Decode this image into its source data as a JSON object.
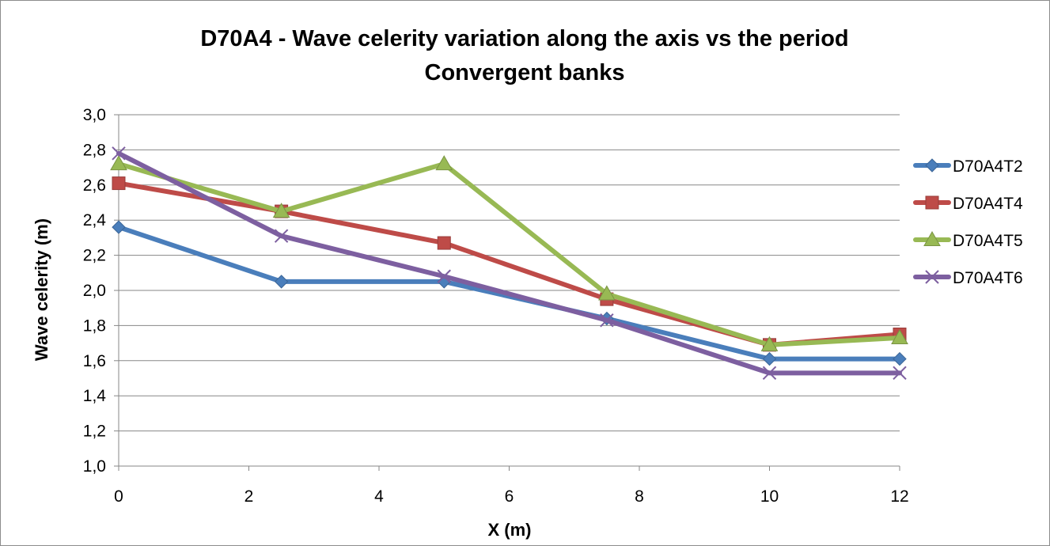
{
  "chart_data": {
    "type": "line",
    "title": "D70A4 - Wave celerity variation along the axis vs the period",
    "subtitle": "Convergent banks",
    "xlabel": "X (m)",
    "ylabel": "Wave celerity (m)",
    "xlim": [
      0,
      12
    ],
    "ylim": [
      1.0,
      3.0
    ],
    "x_ticks": [
      "0",
      "2",
      "4",
      "6",
      "8",
      "10",
      "12"
    ],
    "y_ticks": [
      "1,0",
      "1,2",
      "1,4",
      "1,6",
      "1,8",
      "2,0",
      "2,2",
      "2,4",
      "2,6",
      "2,8",
      "3,0"
    ],
    "grid": "horizontal",
    "legend_position": "right",
    "x": [
      0,
      2.5,
      5,
      7.5,
      10,
      12
    ],
    "series": [
      {
        "name": "D70A4T2",
        "color": "#4a7ebb",
        "marker": "diamond",
        "values": [
          2.36,
          2.05,
          2.05,
          1.84,
          1.61,
          1.61
        ]
      },
      {
        "name": "D70A4T4",
        "color": "#be4b48",
        "marker": "square",
        "values": [
          2.61,
          2.45,
          2.27,
          1.95,
          1.69,
          1.75
        ]
      },
      {
        "name": "D70A4T5",
        "color": "#98b954",
        "marker": "triangle",
        "values": [
          2.72,
          2.45,
          2.72,
          1.98,
          1.69,
          1.73
        ]
      },
      {
        "name": "D70A4T6",
        "color": "#7d5fa0",
        "marker": "x",
        "values": [
          2.78,
          2.31,
          2.08,
          1.83,
          1.53,
          1.53
        ]
      }
    ]
  }
}
